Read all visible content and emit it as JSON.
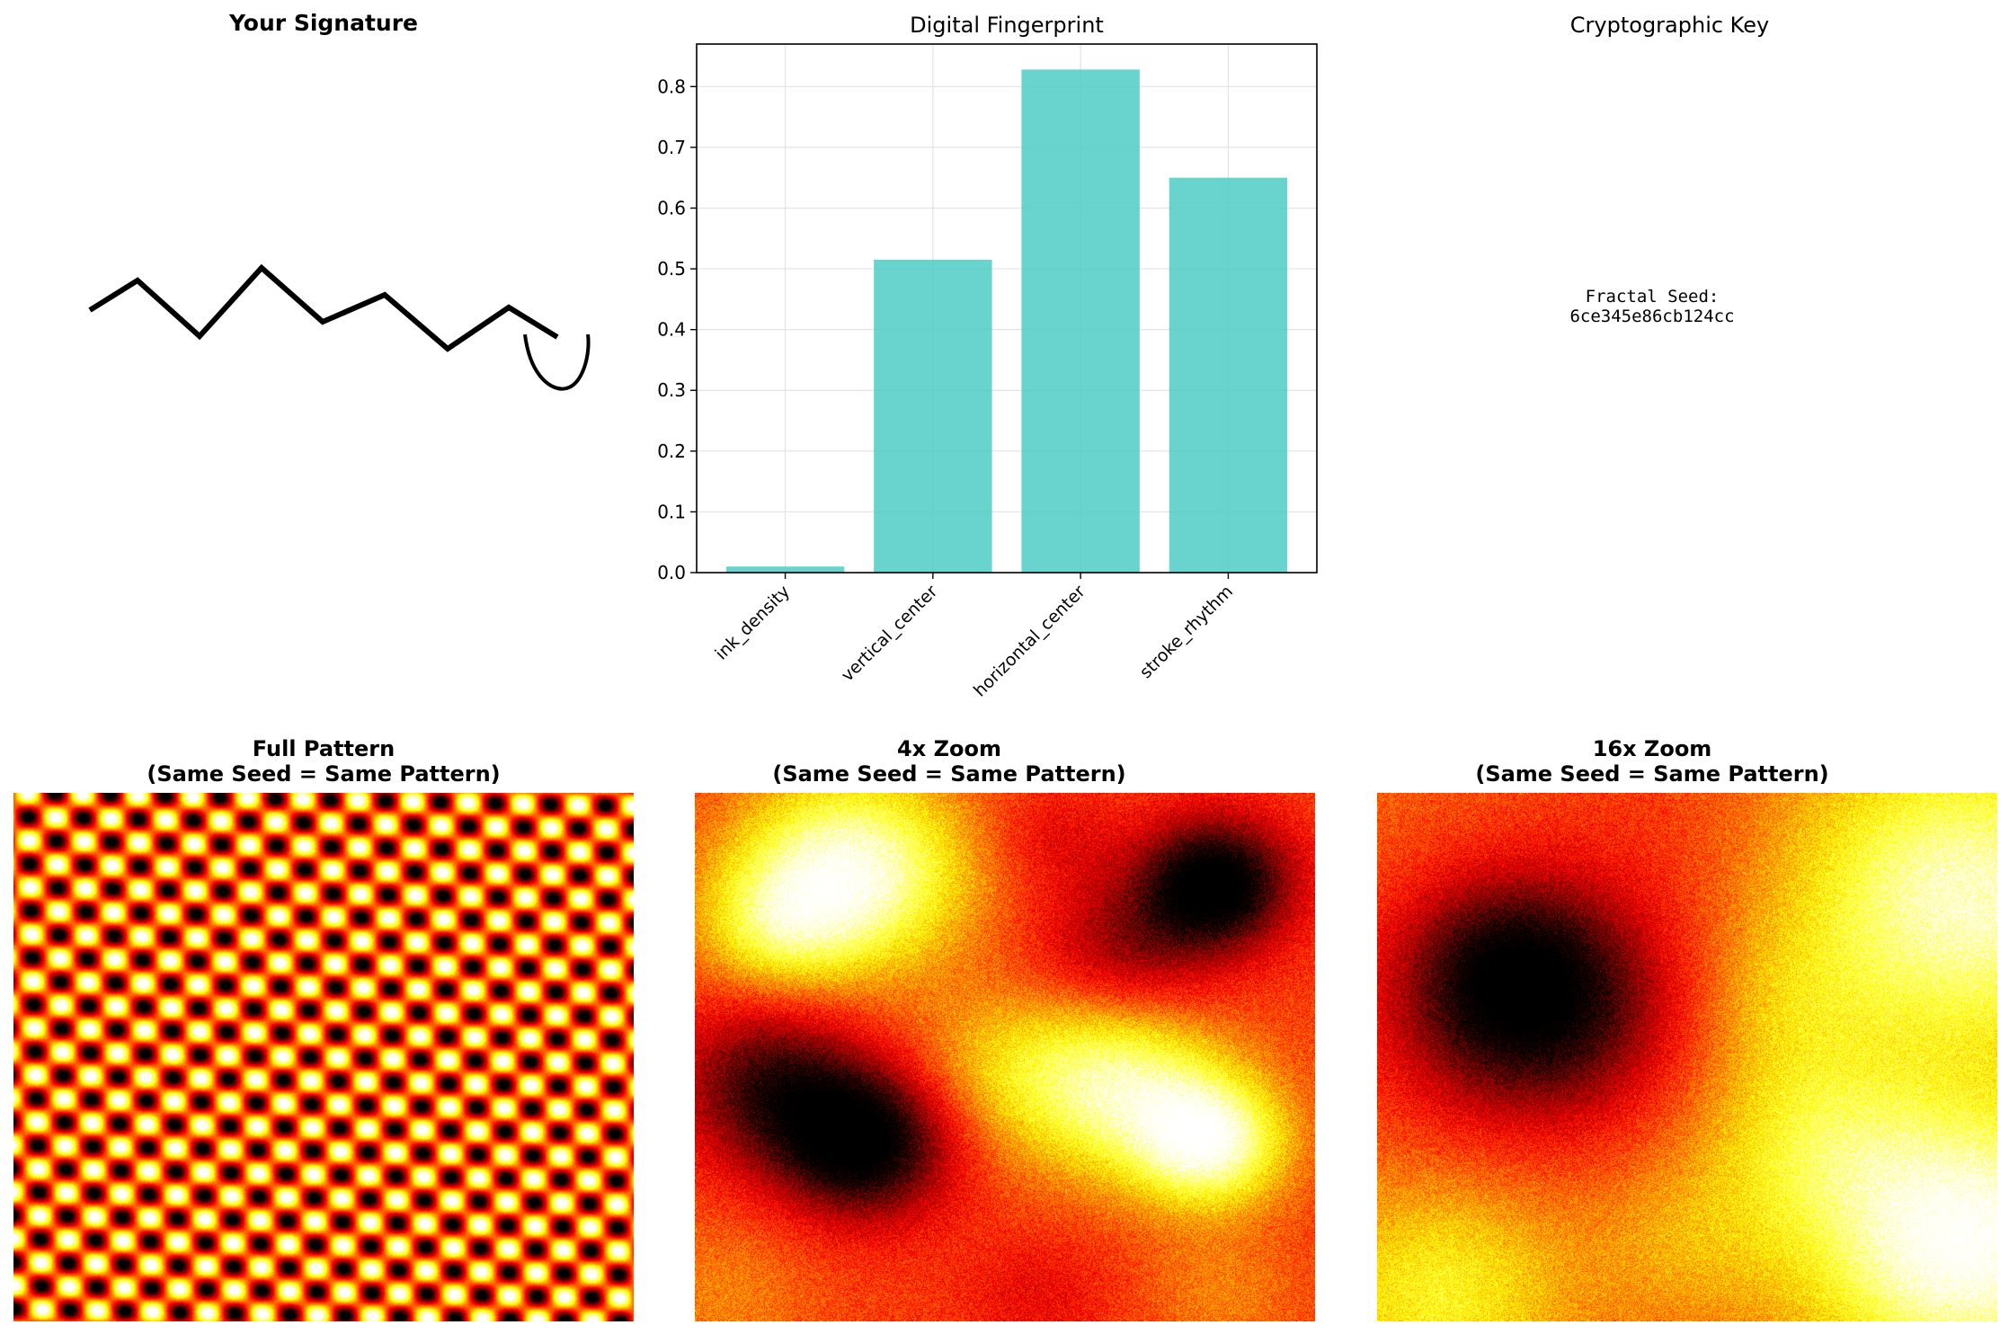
{
  "panels": {
    "signature": {
      "title": "Your Signature"
    },
    "key": {
      "title": "Cryptographic Key",
      "seed_label": "Fractal Seed:",
      "seed_value": "6ce345e86cb124cc"
    },
    "full": {
      "title_line1": "Full Pattern",
      "title_line2": "(Same Seed = Same Pattern)"
    },
    "zoom4": {
      "title_line1": "4x Zoom",
      "title_line2": "(Same Seed = Same Pattern)"
    },
    "zoom16": {
      "title_line1": "16x Zoom",
      "title_line2": "(Same Seed = Same Pattern)"
    }
  },
  "chart_data": {
    "type": "bar",
    "title": "Digital Fingerprint",
    "categories": [
      "ink_density",
      "vertical_center",
      "horizontal_center",
      "stroke_rhythm"
    ],
    "values": [
      0.01,
      0.515,
      0.828,
      0.65
    ],
    "ylim": [
      0,
      0.87
    ],
    "yticks": [
      0.0,
      0.1,
      0.2,
      0.3,
      0.4,
      0.5,
      0.6,
      0.7,
      0.8
    ],
    "ytick_labels": [
      "0.0",
      "0.1",
      "0.2",
      "0.3",
      "0.4",
      "0.5",
      "0.6",
      "0.7",
      "0.8"
    ],
    "grid": true,
    "bar_color": "#4ecdc4",
    "xtick_rotation": 45
  },
  "colors": {
    "colormap": "hot",
    "signature_ink": "#000000"
  }
}
